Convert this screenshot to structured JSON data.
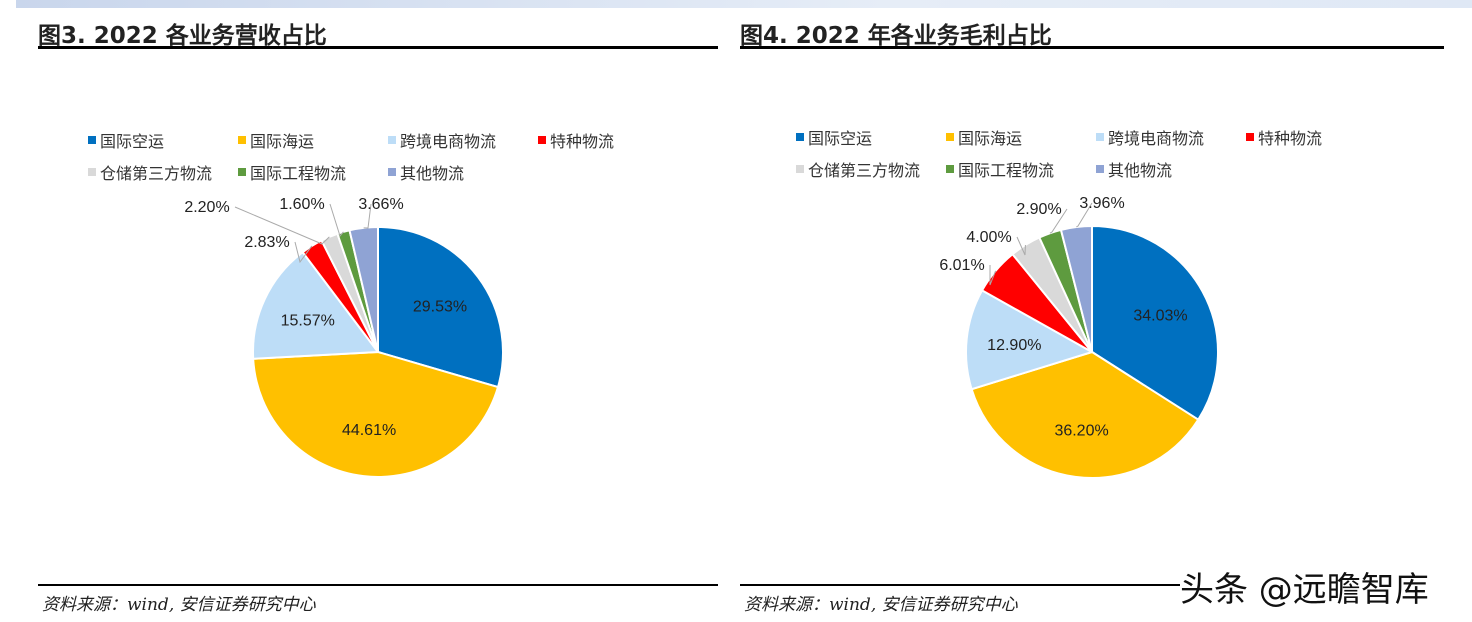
{
  "chart_data": [
    {
      "type": "pie",
      "title": "图3. 2022 各业务营收占比",
      "categories": [
        "国际空运",
        "国际海运",
        "跨境电商物流",
        "特种物流",
        "仓储第三方物流",
        "国际工程物流",
        "其他物流"
      ],
      "values": [
        29.53,
        44.61,
        15.57,
        2.83,
        2.2,
        1.6,
        3.66
      ],
      "labels": [
        "29.53%",
        "44.61%",
        "15.57%",
        "2.83%",
        "2.20%",
        "1.60%",
        "3.66%"
      ],
      "legend": "top",
      "source": "资料来源：wind, 安信证券研究中心"
    },
    {
      "type": "pie",
      "title": "图4. 2022 年各业务毛利占比",
      "categories": [
        "国际空运",
        "国际海运",
        "跨境电商物流",
        "特种物流",
        "仓储第三方物流",
        "国际工程物流",
        "其他物流"
      ],
      "values": [
        34.03,
        36.2,
        12.9,
        6.01,
        4.0,
        2.9,
        3.96
      ],
      "labels": [
        "34.03%",
        "36.20%",
        "12.90%",
        "6.01%",
        "4.00%",
        "2.90%",
        "3.96%"
      ],
      "legend": "top",
      "source": "资料来源：wind, 安信证券研究中心"
    }
  ],
  "colors": [
    "#0070C0",
    "#FFC000",
    "#BDDDF7",
    "#FF0000",
    "#D9D9D9",
    "#5E9B3F",
    "#8FA3D4"
  ],
  "watermark": "头条 @远瞻智库"
}
